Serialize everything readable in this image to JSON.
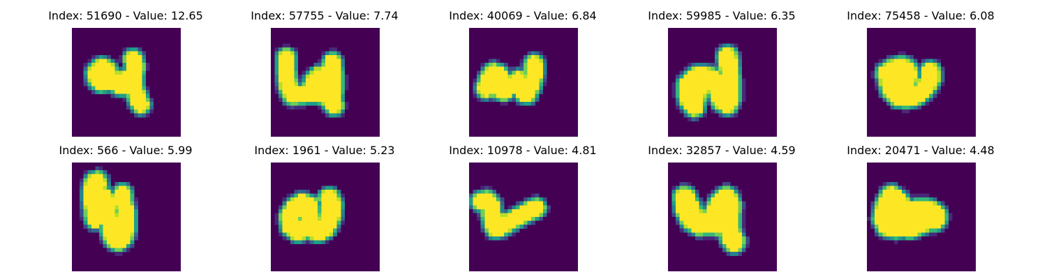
{
  "figure": {
    "panels": [
      {
        "index": 51690,
        "value": 12.65,
        "title": "Index: 51690 - Value: 12.65",
        "strokes": [
          {
            "points": [
              [
                6.3,
                11.7
              ],
              [
                7.7,
                10.3
              ],
              [
                9.0,
                11.0
              ],
              [
                9.7,
                13.3
              ],
              [
                11.7,
                14.0
              ],
              [
                14.0,
                13.3
              ],
              [
                15.7,
                13.0
              ]
            ],
            "width": 2.8
          },
          {
            "points": [
              [
                15.7,
                8.0
              ],
              [
                16.3,
                10.0
              ],
              [
                15.7,
                13.3
              ],
              [
                16.2,
                15.7
              ],
              [
                16.8,
                18.0
              ],
              [
                17.7,
                19.7
              ]
            ],
            "width": 2.6
          },
          {
            "points": [
              [
                6.3,
                11.7
              ],
              [
                6.2,
                13.3
              ],
              [
                7.3,
                14.3
              ],
              [
                9.3,
                14.0
              ]
            ],
            "width": 2.4
          },
          {
            "points": [
              [
                15.7,
                13.0
              ],
              [
                14.5,
                15.2
              ],
              [
                13.3,
                15.2
              ],
              [
                12.0,
                15.0
              ]
            ],
            "width": 2.4
          }
        ]
      },
      {
        "index": 57755,
        "value": 7.74,
        "title": "Index: 57755 - Value: 7.74",
        "strokes": [
          {
            "points": [
              [
                4.0,
                7.7
              ],
              [
                4.0,
                11.0
              ],
              [
                4.5,
                15.0
              ],
              [
                5.5,
                17.3
              ],
              [
                8.0,
                17.2
              ],
              [
                10.7,
                16.8
              ],
              [
                13.0,
                17.0
              ],
              [
                15.0,
                18.0
              ],
              [
                16.3,
                20.0
              ]
            ],
            "width": 2.6
          },
          {
            "points": [
              [
                10.3,
                15.7
              ],
              [
                11.0,
                13.5
              ],
              [
                12.3,
                12.3
              ],
              [
                14.0,
                12.8
              ],
              [
                15.3,
                11.0
              ],
              [
                15.8,
                8.7
              ],
              [
                16.2,
                12.0
              ],
              [
                16.3,
                15.0
              ],
              [
                16.0,
                18.7
              ]
            ],
            "width": 2.5
          }
        ]
      },
      {
        "index": 40069,
        "value": 6.84,
        "title": "Index: 40069 - Value: 6.84",
        "strokes": [
          {
            "points": [
              [
                4.3,
                15.7
              ],
              [
                5.0,
                13.3
              ],
              [
                6.2,
                11.5
              ],
              [
                7.7,
                12.0
              ],
              [
                8.3,
                14.0
              ],
              [
                8.0,
                16.0
              ],
              [
                9.0,
                16.3
              ],
              [
                11.0,
                14.7
              ],
              [
                12.7,
                13.3
              ],
              [
                13.7,
                14.7
              ],
              [
                14.0,
                16.7
              ],
              [
                15.0,
                17.0
              ],
              [
                16.0,
                14.7
              ],
              [
                16.7,
                12.0
              ],
              [
                16.7,
                9.3
              ]
            ],
            "width": 2.6
          }
        ]
      },
      {
        "index": 59985,
        "value": 6.35,
        "title": "Index: 59985 - Value: 6.35",
        "strokes": [
          {
            "points": [
              [
                5.0,
                14.7
              ],
              [
                5.0,
                17.0
              ],
              [
                5.7,
                19.0
              ],
              [
                6.8,
                20.3
              ],
              [
                7.2,
                18.3
              ],
              [
                7.7,
                15.7
              ],
              [
                9.0,
                13.5
              ],
              [
                10.7,
                12.7
              ],
              [
                12.0,
                13.7
              ],
              [
                12.7,
                16.3
              ],
              [
                13.7,
                18.7
              ],
              [
                15.3,
                19.7
              ],
              [
                16.0,
                18.0
              ],
              [
                16.0,
                14.0
              ],
              [
                15.7,
                10.3
              ],
              [
                15.3,
                7.3
              ]
            ],
            "width": 2.8
          },
          {
            "points": [
              [
                5.0,
                14.7
              ],
              [
                6.0,
                13.0
              ],
              [
                7.5,
                12.0
              ],
              [
                9.0,
                12.0
              ]
            ],
            "width": 2.4
          }
        ]
      },
      {
        "index": 75458,
        "value": 6.08,
        "title": "Index: 75458 - Value: 6.08",
        "strokes": [
          {
            "points": [
              [
                5.0,
                11.7
              ],
              [
                6.5,
                10.7
              ],
              [
                8.7,
                10.0
              ],
              [
                10.3,
                10.7
              ],
              [
                10.7,
                12.3
              ],
              [
                9.5,
                13.7
              ],
              [
                7.5,
                13.5
              ],
              [
                6.2,
                12.7
              ],
              [
                5.7,
                14.0
              ],
              [
                6.3,
                16.0
              ],
              [
                8.0,
                17.7
              ],
              [
                10.3,
                18.0
              ],
              [
                12.7,
                17.3
              ],
              [
                14.7,
                15.7
              ],
              [
                16.3,
                13.3
              ],
              [
                16.3,
                11.3
              ]
            ],
            "width": 2.8
          }
        ]
      },
      {
        "index": 566,
        "value": 5.99,
        "title": "Index: 566 - Value: 5.99",
        "strokes": [
          {
            "points": [
              [
                5.7,
                5.0
              ],
              [
                5.3,
                7.0
              ],
              [
                5.3,
                10.0
              ],
              [
                5.7,
                13.3
              ],
              [
                6.0,
                14.7
              ],
              [
                7.0,
                14.0
              ],
              [
                7.5,
                11.7
              ],
              [
                8.0,
                8.5
              ],
              [
                8.7,
                9.3
              ],
              [
                9.2,
                12.0
              ],
              [
                9.7,
                15.0
              ],
              [
                10.0,
                18.0
              ],
              [
                10.7,
                19.7
              ],
              [
                12.0,
                20.3
              ],
              [
                13.3,
                19.3
              ],
              [
                14.0,
                16.7
              ],
              [
                14.0,
                13.3
              ],
              [
                13.3,
                10.3
              ],
              [
                13.0,
                8.0
              ]
            ],
            "width": 2.6
          },
          {
            "points": [
              [
                5.7,
                5.0
              ],
              [
                6.8,
                4.3
              ],
              [
                7.2,
                5.7
              ]
            ],
            "width": 2.2
          }
        ]
      },
      {
        "index": 1961,
        "value": 5.23,
        "title": "Index: 1961 - Value: 5.23",
        "strokes": [
          {
            "points": [
              [
                6.3,
                11.7
              ],
              [
                5.0,
                14.0
              ],
              [
                5.3,
                16.3
              ],
              [
                7.0,
                17.7
              ],
              [
                9.3,
                16.7
              ],
              [
                10.3,
                14.7
              ],
              [
                10.7,
                17.0
              ],
              [
                12.3,
                17.7
              ],
              [
                14.0,
                16.7
              ],
              [
                15.3,
                14.0
              ],
              [
                15.7,
                11.0
              ],
              [
                15.0,
                9.3
              ]
            ],
            "width": 2.9
          },
          {
            "points": [
              [
                6.3,
                11.7
              ],
              [
                8.0,
                10.3
              ],
              [
                10.0,
                11.0
              ],
              [
                10.3,
                14.7
              ]
            ],
            "width": 2.6
          }
        ]
      },
      {
        "index": 10978,
        "value": 4.81,
        "title": "Index: 10978 - Value: 4.81",
        "strokes": [
          {
            "points": [
              [
                3.0,
                10.0
              ],
              [
                4.7,
                9.7
              ],
              [
                5.7,
                11.0
              ],
              [
                5.7,
                13.3
              ],
              [
                6.0,
                15.3
              ],
              [
                6.7,
                17.0
              ],
              [
                8.0,
                16.7
              ],
              [
                10.3,
                15.3
              ],
              [
                12.7,
                14.0
              ],
              [
                15.0,
                12.7
              ],
              [
                17.3,
                11.7
              ]
            ],
            "width": 2.6
          },
          {
            "points": [
              [
                5.7,
                13.3
              ],
              [
                6.7,
                15.0
              ],
              [
                8.7,
                15.7
              ]
            ],
            "width": 2.6
          }
        ]
      },
      {
        "index": 32857,
        "value": 4.59,
        "title": "Index: 32857 - Value: 4.59",
        "strokes": [
          {
            "points": [
              [
                4.3,
                9.0
              ],
              [
                4.7,
                12.0
              ],
              [
                6.0,
                14.7
              ],
              [
                8.3,
                16.0
              ],
              [
                10.7,
                15.5
              ],
              [
                12.3,
                13.0
              ],
              [
                13.3,
                10.7
              ],
              [
                15.0,
                9.0
              ],
              [
                16.0,
                11.0
              ],
              [
                15.7,
                14.3
              ],
              [
                15.7,
                17.0
              ],
              [
                16.3,
                19.3
              ],
              [
                17.0,
                20.3
              ]
            ],
            "width": 3.0
          },
          {
            "points": [
              [
                5.7,
                11.0
              ],
              [
                7.0,
                14.3
              ],
              [
                9.7,
                16.0
              ],
              [
                12.7,
                16.3
              ],
              [
                14.3,
                15.7
              ]
            ],
            "width": 2.6
          }
        ]
      },
      {
        "index": 20471,
        "value": 4.48,
        "title": "Index: 20471 - Value: 4.48",
        "strokes": [
          {
            "points": [
              [
                6.3,
                8.7
              ],
              [
                5.0,
                11.3
              ],
              [
                4.3,
                14.3
              ],
              [
                5.3,
                16.3
              ],
              [
                7.7,
                16.7
              ],
              [
                9.0,
                15.0
              ],
              [
                9.3,
                12.0
              ],
              [
                8.0,
                10.0
              ],
              [
                6.3,
                8.7
              ]
            ],
            "width": 3.0
          },
          {
            "points": [
              [
                9.0,
                14.3
              ],
              [
                11.0,
                13.7
              ],
              [
                13.3,
                13.0
              ],
              [
                15.3,
                13.0
              ],
              [
                17.0,
                14.0
              ]
            ],
            "width": 3.8
          },
          {
            "points": [
              [
                9.0,
                15.7
              ],
              [
                11.0,
                16.7
              ],
              [
                13.0,
                16.0
              ],
              [
                15.0,
                15.0
              ]
            ],
            "width": 3.0
          }
        ]
      }
    ]
  }
}
